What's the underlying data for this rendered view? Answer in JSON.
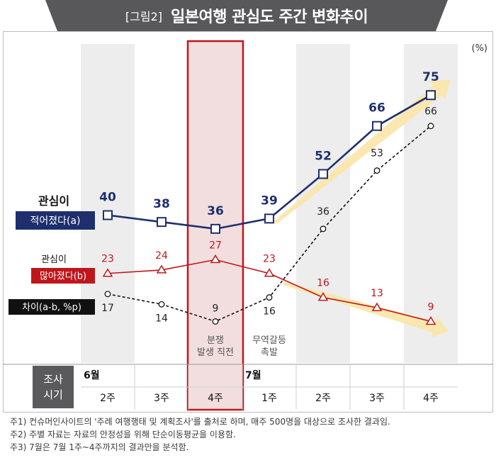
{
  "header": {
    "tag": "[그림2]",
    "title": "일본여행 관심도 주간 변화추이"
  },
  "chart_data": {
    "type": "line",
    "unit_label": "(%)",
    "categories": [
      "6월 2주",
      "6월 3주",
      "6월 4주",
      "7월 1주",
      "7월 2주",
      "7월 3주",
      "7월 4주"
    ],
    "x_labels": [
      "2주",
      "3주",
      "4주",
      "1주",
      "2주",
      "3주",
      "4주"
    ],
    "month_labels": [
      {
        "label": "6월",
        "at_index": 0
      },
      {
        "label": "7월",
        "at_index": 3
      }
    ],
    "period_header": [
      "조사",
      "시기"
    ],
    "ylim": [
      0,
      80
    ],
    "grid": false,
    "highlighted_category_index": 2,
    "series": [
      {
        "key": "decreased",
        "label_lines": [
          "관심이",
          "적어졌다(a)"
        ],
        "values": [
          40,
          38,
          36,
          39,
          52,
          66,
          75
        ],
        "color": "#1f2f6e",
        "marker": "square"
      },
      {
        "key": "increased",
        "label_lines": [
          "관심이",
          "많아졌다(b)"
        ],
        "values": [
          23,
          24,
          27,
          23,
          16,
          13,
          9
        ],
        "color": "#c0161b",
        "marker": "triangle"
      },
      {
        "key": "difference",
        "label_lines": [
          "차이(a-b, %p)"
        ],
        "values": [
          17,
          14,
          9,
          16,
          36,
          53,
          66
        ],
        "color": "#111111",
        "marker": "circle",
        "dashed": true
      }
    ],
    "annotations": [
      {
        "lines": [
          "분쟁",
          "발생 직전"
        ],
        "at_index": 2
      },
      {
        "lines": [
          "무역갈등",
          "촉발"
        ],
        "at_index": 3
      }
    ],
    "colors": {
      "shaded_column": "#ededed",
      "highlight_fill": "#f2dede",
      "highlight_border": "#c0161b",
      "label_box_blue": "#1f2f6e",
      "label_box_red": "#c0161b",
      "label_box_black": "#111111",
      "arrow_fill": "#fbe6a8"
    }
  },
  "notes": [
    "주1) 컨슈머인사이트의 '주례 여행행태 및 계획조사'를 출처로 하며, 매주 500명을 대상으로 조사한 결과임.",
    "주2) 주별 자료는 자료의 안정성을 위해 단순이동평균을 이용함.",
    "주3) 7월은 7월 1주~4주까지의 결과만을 분석함."
  ]
}
